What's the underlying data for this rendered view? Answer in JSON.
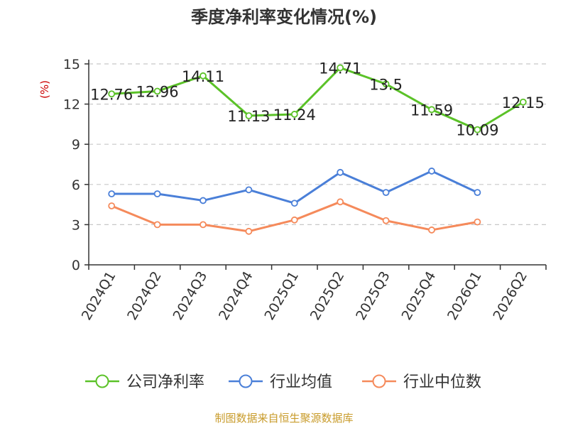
{
  "chart_data": {
    "type": "line",
    "title": "季度净利率变化情况(%)",
    "ylabel": "(%)",
    "xlabel": "",
    "ylim": [
      0,
      15
    ],
    "yticks": [
      0,
      3,
      6,
      9,
      12,
      15
    ],
    "grid": "horizontal-dashed",
    "legend_position": "bottom",
    "categories": [
      "2024Q1",
      "2024Q2",
      "2024Q3",
      "2024Q4",
      "2025Q1",
      "2025Q2",
      "2025Q3",
      "2025Q4",
      "2026Q1",
      "2026Q2"
    ],
    "series": [
      {
        "name": "公司净利率",
        "color": "#5bc228",
        "labeled": true,
        "values": [
          12.76,
          12.96,
          14.11,
          11.13,
          11.24,
          14.71,
          13.5,
          11.59,
          10.09,
          12.15
        ],
        "labels": [
          "12.76",
          "12.96",
          "14.11",
          "11.13",
          "11.24",
          "14.71",
          "13.5",
          "11.59",
          "10.09",
          "12.15"
        ]
      },
      {
        "name": "行业均值",
        "color": "#4a7fd8",
        "labeled": false,
        "values": [
          5.3,
          5.3,
          4.8,
          5.6,
          4.6,
          6.9,
          5.4,
          7.0,
          5.4,
          null
        ]
      },
      {
        "name": "行业中位数",
        "color": "#f58a5b",
        "labeled": false,
        "values": [
          4.4,
          3.0,
          3.0,
          2.5,
          3.35,
          4.7,
          3.3,
          2.6,
          3.2,
          null
        ]
      }
    ]
  },
  "footer": {
    "source": "制图数据来自恒生聚源数据库"
  }
}
